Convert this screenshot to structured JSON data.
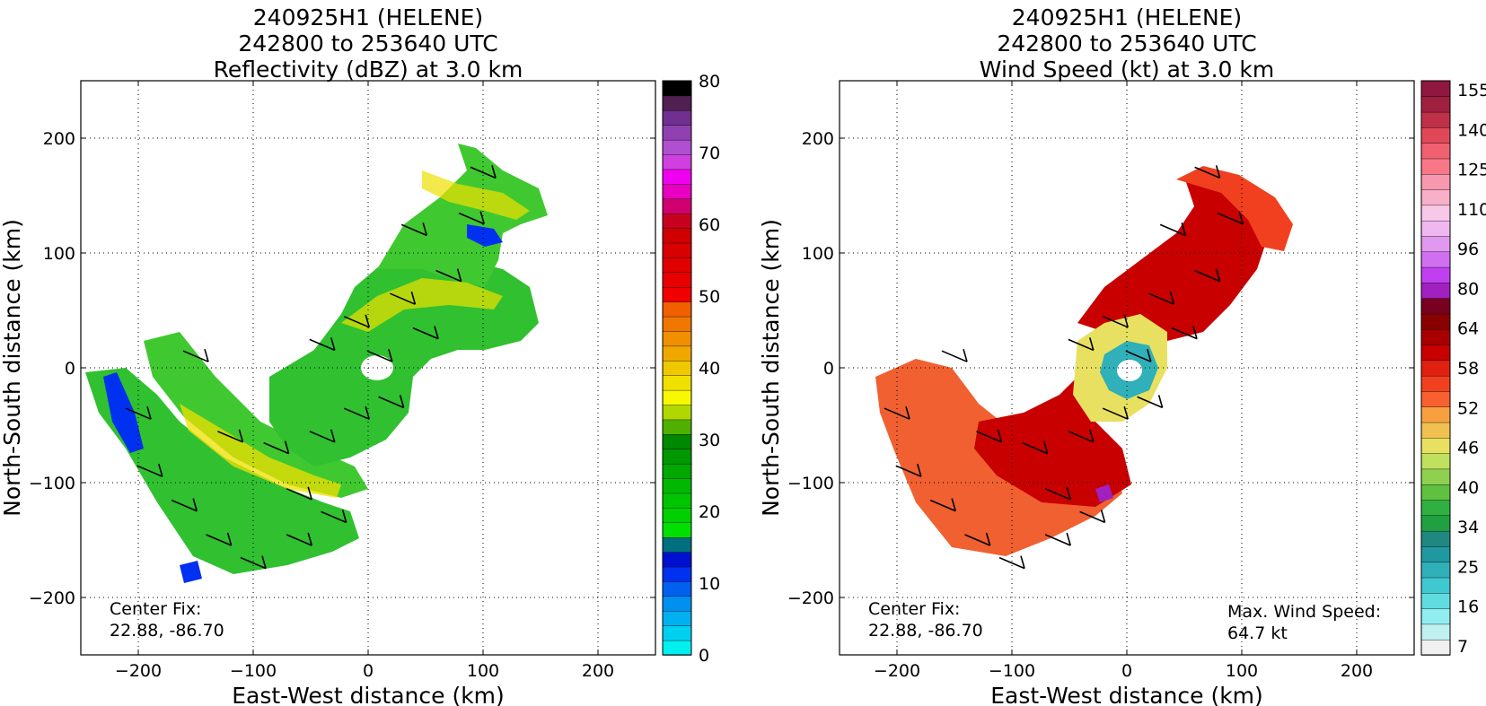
{
  "chart_data": [
    {
      "type": "heatmap",
      "title": [
        "240925H1 (HELENE)",
        "242800 to 253640 UTC",
        "Reflectivity (dBZ) at 3.0 km"
      ],
      "xlabel": "East-West distance (km)",
      "ylabel": "North-South distance (km)",
      "xlim": [
        -250,
        250
      ],
      "ylim": [
        -250,
        250
      ],
      "xticks": [
        -200,
        -100,
        0,
        100,
        200
      ],
      "yticks": [
        -200,
        -100,
        0,
        100,
        200
      ],
      "xtick_labels": [
        "−200",
        "−100",
        "0",
        "100",
        "200"
      ],
      "ytick_labels": [
        "−200",
        "−100",
        "0",
        "100",
        "200"
      ],
      "grid": true,
      "annotation": {
        "line1": "Center Fix:",
        "line2": "22.88, -86.70"
      },
      "colorbar": {
        "min": 0,
        "max": 80,
        "ticks": [
          0,
          10,
          20,
          30,
          40,
          50,
          60,
          70,
          80
        ],
        "colors": [
          "#00f0f0",
          "#00d0f0",
          "#00b0f0",
          "#0090f0",
          "#0060f0",
          "#0030f0",
          "#0010d0",
          "#007080",
          "#00e000",
          "#00d000",
          "#00c400",
          "#00b800",
          "#00a800",
          "#009800",
          "#008800",
          "#50b000",
          "#b0d800",
          "#f8f800",
          "#f0e000",
          "#f0c800",
          "#f0a800",
          "#f09000",
          "#f07800",
          "#f06000",
          "#f00000",
          "#e80000",
          "#e00000",
          "#d80000",
          "#d00000",
          "#c80020",
          "#d00070",
          "#e800c0",
          "#f000f0",
          "#d040e0",
          "#b050d0",
          "#9040b0",
          "#703090",
          "#502050",
          "#000000"
        ]
      },
      "field_color": "#30c030"
    },
    {
      "type": "heatmap",
      "title": [
        "240925H1 (HELENE)",
        "242800 to 253640 UTC",
        "Wind Speed (kt) at 3.0 km"
      ],
      "xlabel": "East-West distance (km)",
      "ylabel": "North-South distance (km)",
      "xlim": [
        -250,
        250
      ],
      "ylim": [
        -250,
        250
      ],
      "xticks": [
        -200,
        -100,
        0,
        100,
        200
      ],
      "yticks": [
        -200,
        -100,
        0,
        100,
        200
      ],
      "xtick_labels": [
        "−200",
        "−100",
        "0",
        "100",
        "200"
      ],
      "ytick_labels": [
        "−200",
        "−100",
        "0",
        "100",
        "200"
      ],
      "grid": true,
      "annotation": {
        "line1": "Center Fix:",
        "line2": "22.88, -86.70"
      },
      "annotation2": {
        "line1": "Max. Wind Speed:",
        "line2": "64.7 kt"
      },
      "colorbar": {
        "ticks_labels": [
          "7",
          "16",
          "25",
          "34",
          "40",
          "46",
          "52",
          "58",
          "64",
          "80",
          "96",
          "110",
          "125",
          "140",
          "155"
        ],
        "colors": [
          "#f0f0f0",
          "#c0f0f0",
          "#90eef0",
          "#60dce0",
          "#40c8d0",
          "#30b0b8",
          "#2098a0",
          "#208880",
          "#20a040",
          "#30b040",
          "#60c040",
          "#90d050",
          "#c0e060",
          "#e8e060",
          "#f0c050",
          "#f8a040",
          "#f86030",
          "#f04020",
          "#e02010",
          "#c80000",
          "#a80000",
          "#880000",
          "#780020",
          "#a020c0",
          "#c040f0",
          "#d070f0",
          "#e098f0",
          "#f0b8f0",
          "#f8c8e8",
          "#f8b0c8",
          "#f898b0",
          "#f87888",
          "#f06070",
          "#e04858",
          "#c03048",
          "#a02040",
          "#901840"
        ]
      },
      "field_color": "#d01010"
    }
  ]
}
